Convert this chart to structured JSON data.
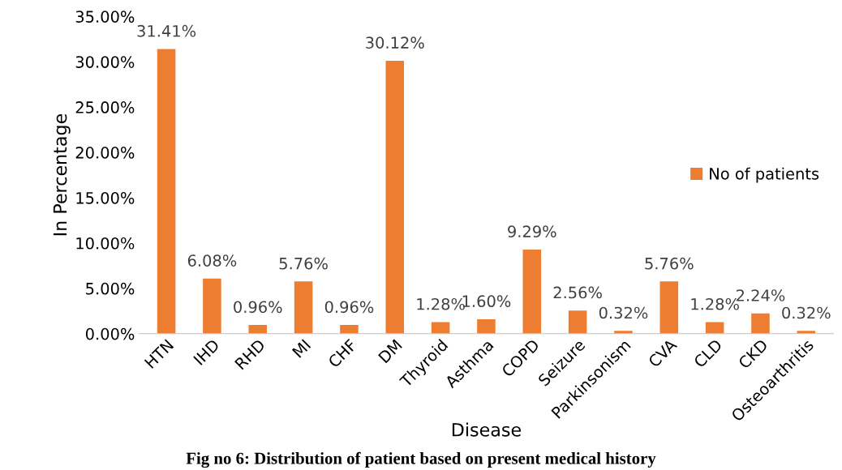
{
  "chart_data": {
    "type": "bar",
    "ylabel": "In Percentage",
    "xlabel": "Disease",
    "categories": [
      "HTN",
      "IHD",
      "RHD",
      "MI",
      "CHF",
      "DM",
      "Thyroid",
      "Asthma",
      "COPD",
      "Seizure",
      "Parkinsonism",
      "CVA",
      "CLD",
      "CKD",
      "Osteoarthritis"
    ],
    "series": [
      {
        "name": "No of patients",
        "color": "#ed7d31",
        "values": [
          31.41,
          6.08,
          0.96,
          5.76,
          0.96,
          30.12,
          1.28,
          1.6,
          9.29,
          2.56,
          0.32,
          5.76,
          1.28,
          2.24,
          0.32
        ],
        "value_labels": [
          "31.41%",
          "6.08%",
          "0.96%",
          "5.76%",
          "0.96%",
          "30.12%",
          "1.28%",
          "1.60%",
          "9.29%",
          "2.56%",
          "0.32%",
          "5.76%",
          "1.28%",
          "2.24%",
          "0.32%"
        ]
      }
    ],
    "ylim": [
      0,
      35
    ],
    "yticks": [
      {
        "value": 0,
        "label": "0.00%"
      },
      {
        "value": 5,
        "label": "5.00%"
      },
      {
        "value": 10,
        "label": "10.00%"
      },
      {
        "value": 15,
        "label": "15.00%"
      },
      {
        "value": 20,
        "label": "20.00%"
      },
      {
        "value": 25,
        "label": "25.00%"
      },
      {
        "value": 30,
        "label": "30.00%"
      },
      {
        "value": 35,
        "label": "35.00%"
      }
    ],
    "grid": false,
    "legend": "center right",
    "annotations": [
      "Fig no 6: Distribution of patient based on present medical history"
    ]
  }
}
